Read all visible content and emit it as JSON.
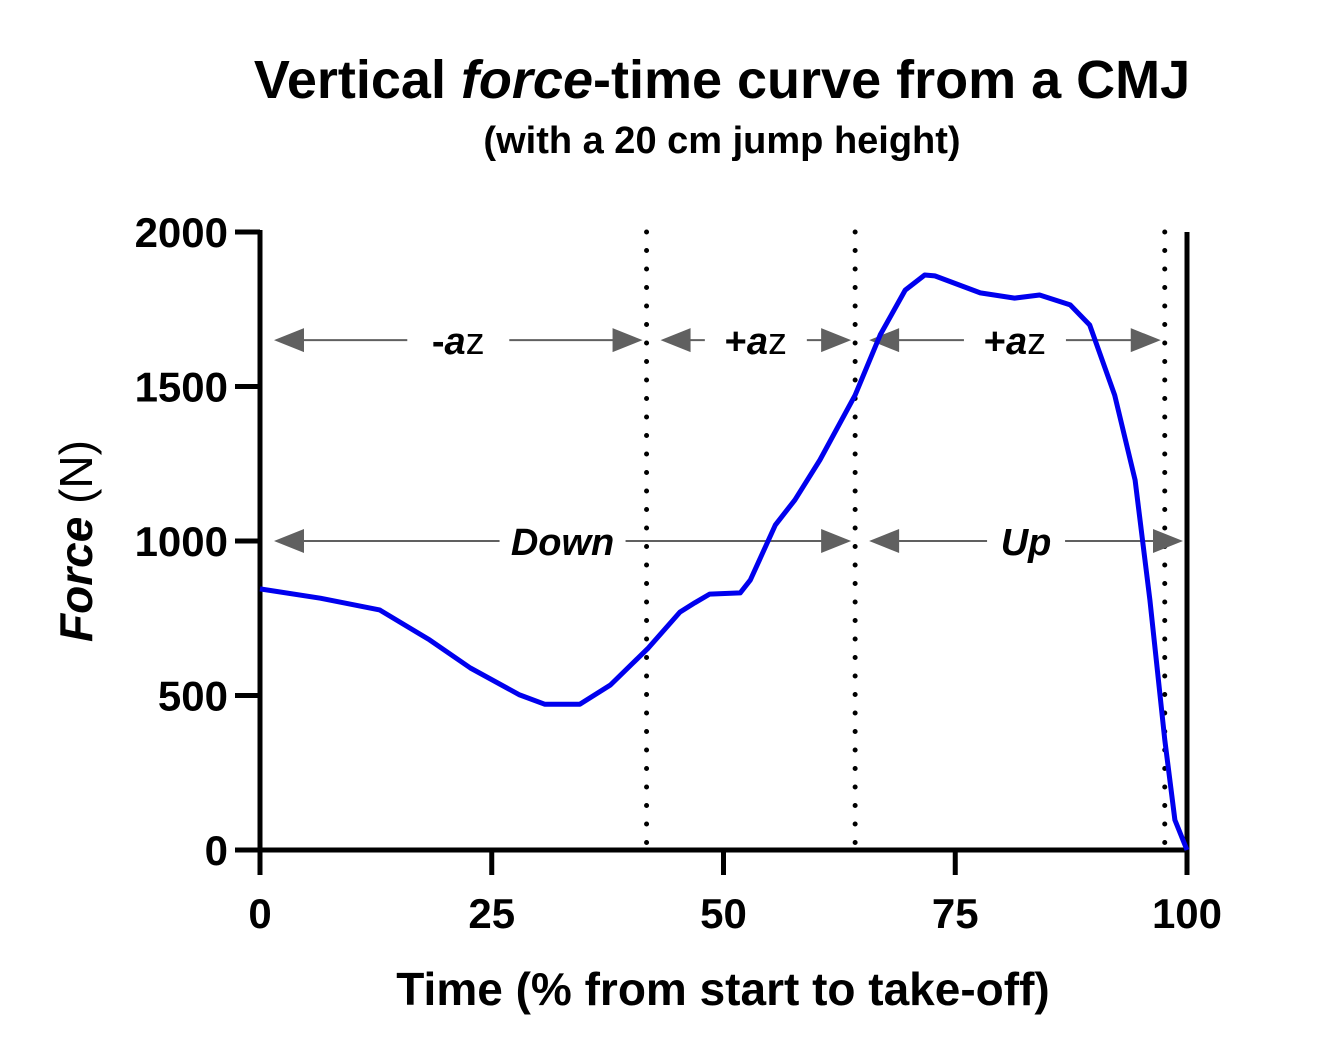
{
  "chart_data": {
    "type": "line",
    "title": {
      "pre": "Vertical ",
      "italic": "force",
      "post": "-time curve from a CMJ"
    },
    "subtitle": "(with a 20 cm jump height)",
    "xlabel": "Time (% from start to take-off)",
    "ylabel": {
      "italic": "Force",
      "post": " (N)"
    },
    "xlim": [
      0,
      100
    ],
    "ylim": [
      0,
      2000
    ],
    "xticks": [
      "0",
      "25",
      "50",
      "75",
      "100"
    ],
    "yticks": [
      "0",
      "500",
      "1000",
      "1500",
      "2000"
    ],
    "grid": false,
    "line_color": "#0000ee",
    "x": [
      0,
      6.5,
      12.9,
      18.3,
      22.7,
      28,
      30.7,
      34.5,
      37.8,
      41.9,
      45.3,
      46.9,
      48.5,
      51.8,
      52.9,
      55.6,
      57.7,
      60.4,
      64.2,
      66.9,
      69.6,
      71.7,
      72.8,
      77.7,
      81.4,
      84.1,
      87.4,
      89.5,
      92.2,
      94.4,
      96.0,
      97.6,
      98.7,
      100
    ],
    "y": [
      845,
      815,
      777,
      680,
      589,
      502,
      472,
      472,
      534,
      654,
      770,
      800,
      828,
      832,
      874,
      1052,
      1133,
      1262,
      1472,
      1667,
      1812,
      1861,
      1858,
      1803,
      1786,
      1796,
      1764,
      1699,
      1472,
      1197,
      809,
      356,
      97,
      0
    ],
    "phase_lines": [
      41.7,
      64.2,
      97.6
    ],
    "takeoff_line": 100,
    "annotations": [
      {
        "y": 1650,
        "from": 0,
        "to": 41.7,
        "sign": "-",
        "a": "a",
        "z": "z",
        "italic_all": false
      },
      {
        "y": 1650,
        "from": 41.7,
        "to": 64.2,
        "sign": "+",
        "a": "a",
        "z": "z",
        "italic_all": false
      },
      {
        "y": 1650,
        "from": 64.2,
        "to": 97.6,
        "sign": "+",
        "a": "a",
        "z": "z",
        "italic_all": false
      },
      {
        "y": 1000,
        "from": 0,
        "to": 64.2,
        "label": "Down",
        "italic_all": true
      },
      {
        "y": 1000,
        "from": 64.2,
        "to": 100,
        "label": "Up",
        "italic_all": true
      }
    ],
    "arrow_color": "#606060"
  }
}
